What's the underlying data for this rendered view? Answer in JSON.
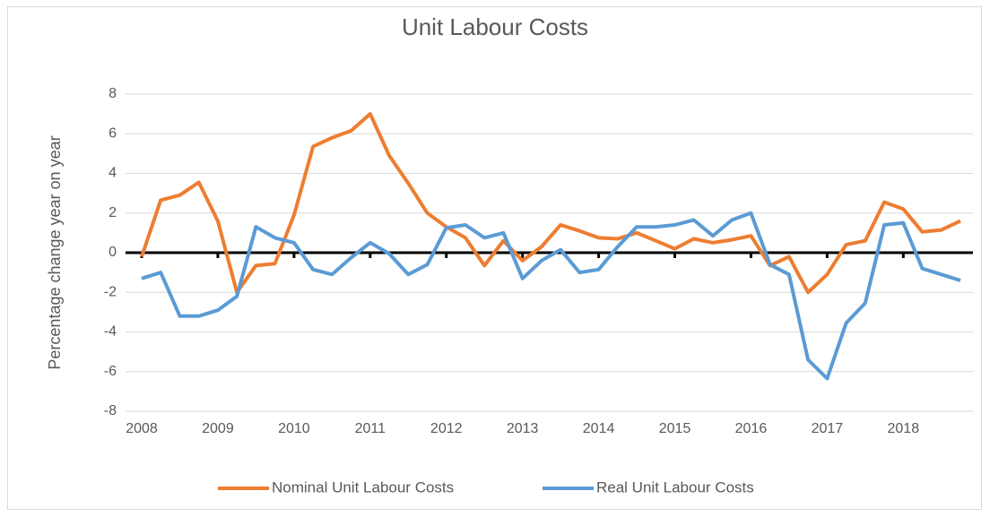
{
  "chart_data": {
    "type": "line",
    "title": "Unit Labour Costs",
    "y_label": "Percentage change year on year",
    "categories": [
      "2008",
      null,
      null,
      null,
      "2009",
      null,
      null,
      null,
      "2010",
      null,
      null,
      null,
      "2011",
      null,
      null,
      null,
      "2012",
      null,
      null,
      null,
      "2013",
      null,
      null,
      null,
      "2014",
      null,
      null,
      null,
      "2015",
      null,
      null,
      null,
      "2016",
      null,
      null,
      null,
      "2017",
      null,
      null,
      null,
      "2018",
      null,
      null,
      null
    ],
    "series": [
      {
        "name": "Nominal Unit Labour Costs",
        "color": "#ed7d31",
        "values": [
          -0.2,
          2.65,
          2.9,
          3.55,
          1.6,
          -2.0,
          -0.65,
          -0.55,
          1.9,
          5.35,
          5.8,
          6.15,
          7.0,
          4.9,
          3.5,
          2.0,
          1.3,
          0.75,
          -0.65,
          0.6,
          -0.4,
          0.3,
          1.4,
          1.1,
          0.75,
          0.7,
          1.0,
          0.6,
          0.2,
          0.7,
          0.5,
          0.65,
          0.85,
          -0.65,
          -0.2,
          -2.0,
          -1.1,
          0.4,
          0.6,
          2.55,
          2.2,
          1.05,
          1.15,
          1.6
        ]
      },
      {
        "name": "Real Unit Labour Costs",
        "color": "#5b9bd5",
        "values": [
          -1.3,
          -1.0,
          -3.2,
          -3.2,
          -2.9,
          -2.2,
          1.3,
          0.75,
          0.5,
          -0.85,
          -1.1,
          -0.25,
          0.5,
          -0.05,
          -1.1,
          -0.6,
          1.25,
          1.4,
          0.75,
          1.0,
          -1.3,
          -0.4,
          0.15,
          -1.0,
          -0.85,
          0.3,
          1.3,
          1.3,
          1.4,
          1.65,
          0.85,
          1.65,
          2.0,
          -0.6,
          -1.1,
          -5.4,
          -6.35,
          -3.55,
          -2.55,
          1.4,
          1.5,
          -0.8,
          -1.1,
          -1.4
        ]
      }
    ],
    "ylim": [
      -8,
      8
    ],
    "yticks": [
      -8,
      -6,
      -4,
      -2,
      0,
      2,
      4,
      6,
      8
    ],
    "grid": true,
    "legend": "bottom"
  }
}
